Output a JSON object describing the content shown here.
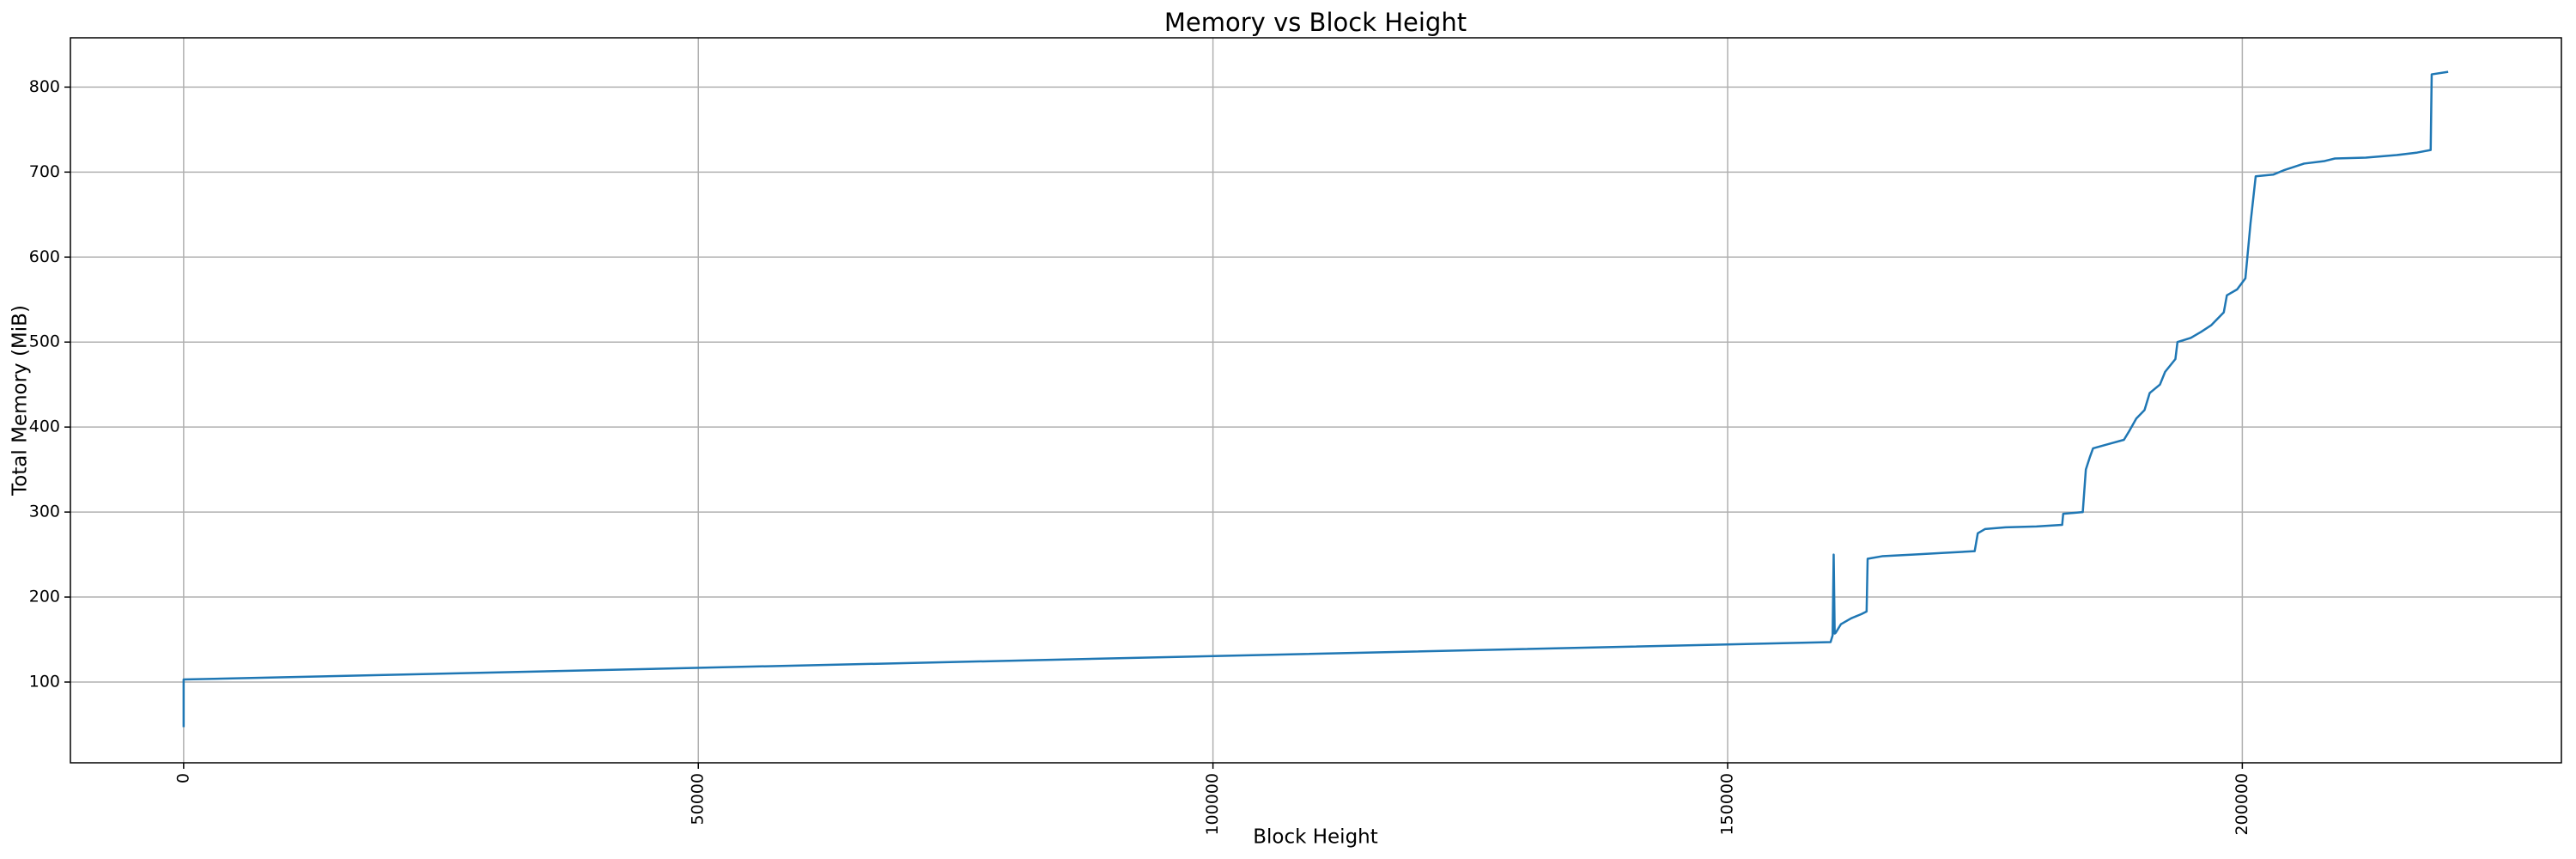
{
  "chart_data": {
    "type": "line",
    "title": "Memory vs Block Height",
    "x_label": "Block Height",
    "y_label": "Total Memory (MiB)",
    "x": [
      0,
      0,
      160000,
      160200,
      160300,
      160400,
      160500,
      161000,
      162000,
      163000,
      163500,
      163600,
      165000,
      168000,
      171000,
      174000,
      174300,
      175000,
      177000,
      180000,
      182500,
      182600,
      184500,
      184800,
      185200,
      185500,
      187000,
      188500,
      189000,
      189700,
      190500,
      191000,
      192000,
      192500,
      193500,
      193700,
      195000,
      196000,
      197000,
      198200,
      198500,
      199500,
      200300,
      200800,
      201300,
      203000,
      204000,
      206000,
      208000,
      209000,
      212000,
      215000,
      217000,
      218300,
      218400,
      220000
    ],
    "series": [
      {
        "name": "Total Memory",
        "color": "#1f77b4",
        "values": [
          47,
          103,
          147,
          155,
          250,
          157,
          158,
          168,
          175,
          180,
          183,
          245,
          248,
          250,
          252,
          254,
          275,
          280,
          282,
          283,
          285,
          298,
          300,
          350,
          365,
          375,
          380,
          385,
          395,
          410,
          420,
          440,
          450,
          465,
          480,
          500,
          505,
          512,
          520,
          535,
          555,
          562,
          575,
          640,
          695,
          697,
          702,
          710,
          713,
          716,
          717,
          720,
          723,
          726,
          815,
          818
        ]
      }
    ],
    "xlim": [
      -11000,
      231000
    ],
    "ylim": [
      5,
      858
    ],
    "xticks": [
      0,
      50000,
      100000,
      150000,
      200000
    ],
    "yticks": [
      100,
      200,
      300,
      400,
      500,
      600,
      700,
      800
    ],
    "grid": true
  }
}
